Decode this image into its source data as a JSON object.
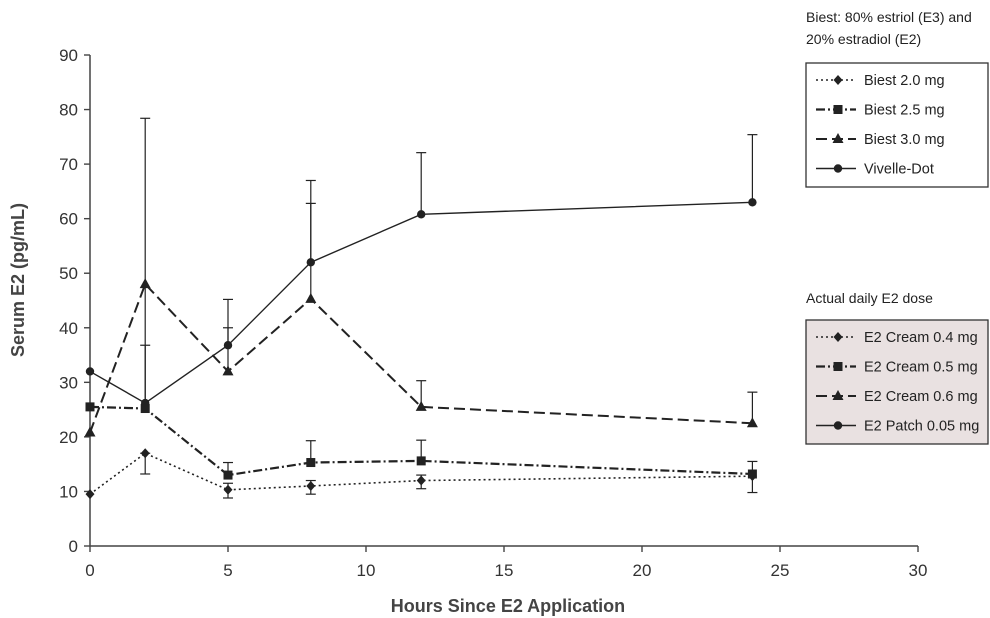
{
  "chart_data": {
    "type": "line",
    "title": "",
    "xlabel": "Hours Since E2 Application",
    "ylabel": "Serum E2 (pg/mL)",
    "xlim": [
      0,
      30
    ],
    "ylim": [
      0,
      90
    ],
    "x_ticks": [
      0,
      5,
      10,
      15,
      20,
      25,
      30
    ],
    "y_ticks": [
      0,
      10,
      20,
      30,
      40,
      50,
      60,
      70,
      80,
      90
    ],
    "grid": false,
    "legend_placement": "right",
    "legends": [
      {
        "title_lines": [
          "Biest: 80% estriol (E3) and",
          "20% estradiol (E2)"
        ],
        "background": "#ffffff",
        "entries": [
          "Biest 2.0 mg",
          "Biest 2.5 mg",
          "Biest 3.0 mg",
          "Vivelle-Dot"
        ]
      },
      {
        "title_lines": [
          "Actual daily E2 dose"
        ],
        "background": "#e9e1e1",
        "entries": [
          "E2 Cream 0.4 mg",
          "E2 Cream 0.5 mg",
          "E2 Cream 0.6 mg",
          "E2 Patch 0.05 mg"
        ]
      }
    ],
    "series": [
      {
        "style": "dotted",
        "marker": "diamond",
        "x": [
          0,
          2,
          5,
          8,
          12,
          24
        ],
        "y": [
          9.5,
          17,
          10.3,
          11,
          12,
          12.8
        ],
        "error_upper": [
          null,
          17,
          11.5,
          12,
          13,
          15.5
        ],
        "error_lower": [
          null,
          13.2,
          8.8,
          9.5,
          10.5,
          9.8
        ]
      },
      {
        "style": "dash-dot",
        "marker": "square",
        "x": [
          0,
          2,
          5,
          8,
          12,
          24
        ],
        "y": [
          25.5,
          25.2,
          13,
          15.3,
          15.6,
          13.2
        ],
        "error_upper": [
          null,
          36.8,
          15.3,
          19.3,
          19.4,
          null
        ],
        "error_lower": [
          null,
          null,
          null,
          null,
          null,
          null
        ]
      },
      {
        "style": "dashed",
        "marker": "triangle",
        "x": [
          0,
          2,
          5,
          8,
          12,
          24
        ],
        "y": [
          20.8,
          48,
          32,
          45.3,
          25.5,
          22.5
        ],
        "error_upper": [
          null,
          null,
          40,
          62.8,
          30.3,
          28.2
        ],
        "error_lower": [
          null,
          null,
          null,
          null,
          null,
          null
        ]
      },
      {
        "style": "solid",
        "marker": "circle",
        "x": [
          0,
          2,
          5,
          8,
          12,
          24
        ],
        "y": [
          32,
          26.2,
          36.8,
          52,
          60.8,
          63
        ],
        "error_upper": [
          null,
          78.4,
          45.2,
          67,
          72.1,
          75.4
        ],
        "error_lower": [
          null,
          null,
          null,
          null,
          null,
          null
        ]
      }
    ]
  }
}
